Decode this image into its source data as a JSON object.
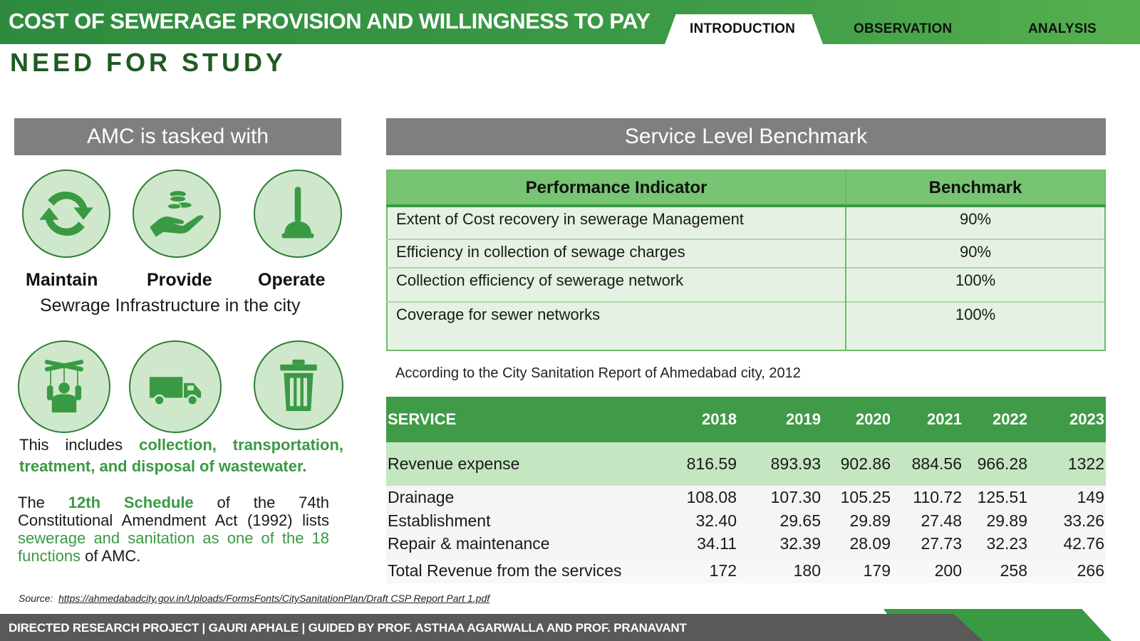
{
  "header": {
    "title": "COST OF SEWERAGE PROVISION AND WILLINGNESS TO PAY",
    "tabs": [
      {
        "label": "INTRODUCTION",
        "active": true
      },
      {
        "label": "OBSERVATION",
        "active": false
      },
      {
        "label": "ANALYSIS",
        "active": false
      }
    ]
  },
  "page_title": "NEED FOR STUDY",
  "left_panel": {
    "heading": "AMC is tasked with",
    "icons": [
      {
        "name": "recycle-arrows-icon",
        "label": "Maintain"
      },
      {
        "name": "hand-coins-icon",
        "label": "Provide"
      },
      {
        "name": "plunger-icon",
        "label": "Operate"
      },
      {
        "name": "governance-puppet-icon"
      },
      {
        "name": "dump-truck-icon"
      },
      {
        "name": "trash-bin-icon"
      }
    ],
    "infra_text": "Sewrage Infrastructure in the city",
    "includes": {
      "prefix": "This includes ",
      "highlight": "collection, transportation, treatment, and disposal of wastewater."
    },
    "schedule": {
      "t1": "The ",
      "h1": "12th Schedule",
      "t2": " of the 74th Constitutional Amendment Act (1992) lists ",
      "h2": "sewerage and sanitation as one of the 18 functions",
      "t3": " of AMC."
    }
  },
  "right_panel": {
    "heading": "Service Level Benchmark",
    "benchmark_table": {
      "headers": [
        "Performance Indicator",
        "Benchmark"
      ],
      "rows": [
        [
          "Extent of Cost recovery in sewerage Management",
          "90%"
        ],
        [
          "Efficiency in collection of sewage charges",
          "90%"
        ],
        [
          "Collection efficiency of sewerage network",
          "100%"
        ],
        [
          "Coverage for sewer networks",
          "100%"
        ]
      ]
    },
    "note": "According to the City Sanitation Report of Ahmedabad city, 2012",
    "service_table": {
      "headers": [
        "SERVICE",
        "2018",
        "2019",
        "2020",
        "2021",
        "2022",
        "2023"
      ],
      "rows": [
        [
          "Revenue expense",
          "816.59",
          "893.93",
          "902.86",
          "884.56",
          "966.28",
          "1322"
        ],
        [
          "Drainage",
          "108.08",
          "107.30",
          "105.25",
          "110.72",
          "125.51",
          "149"
        ],
        [
          "Establishment",
          "32.40",
          "29.65",
          "29.89",
          "27.48",
          "29.89",
          "33.26"
        ],
        [
          "Repair & maintenance",
          "34.11",
          "32.39",
          "28.09",
          "27.73",
          "32.23",
          "42.76"
        ],
        [
          "Total Revenue from the services",
          "172",
          "180",
          "179",
          "200",
          "258",
          "266"
        ]
      ]
    }
  },
  "source": {
    "label": "Source:",
    "link": "https://ahmedabadcity.gov.in/Uploads/FormsFonts/CitySanitationPlan/Draft CSP Report Part 1.pdf"
  },
  "footer": "DIRECTED RESEARCH PROJECT | GAURI APHALE | GUIDED BY PROF. ASTHAA AGARWALLA AND PROF. PRANAVANT",
  "colors": {
    "primary_green": "#3a9a44",
    "dark_green": "#1f5a22",
    "heading_gray": "#7f7f7f",
    "footer_gray": "#595959"
  }
}
